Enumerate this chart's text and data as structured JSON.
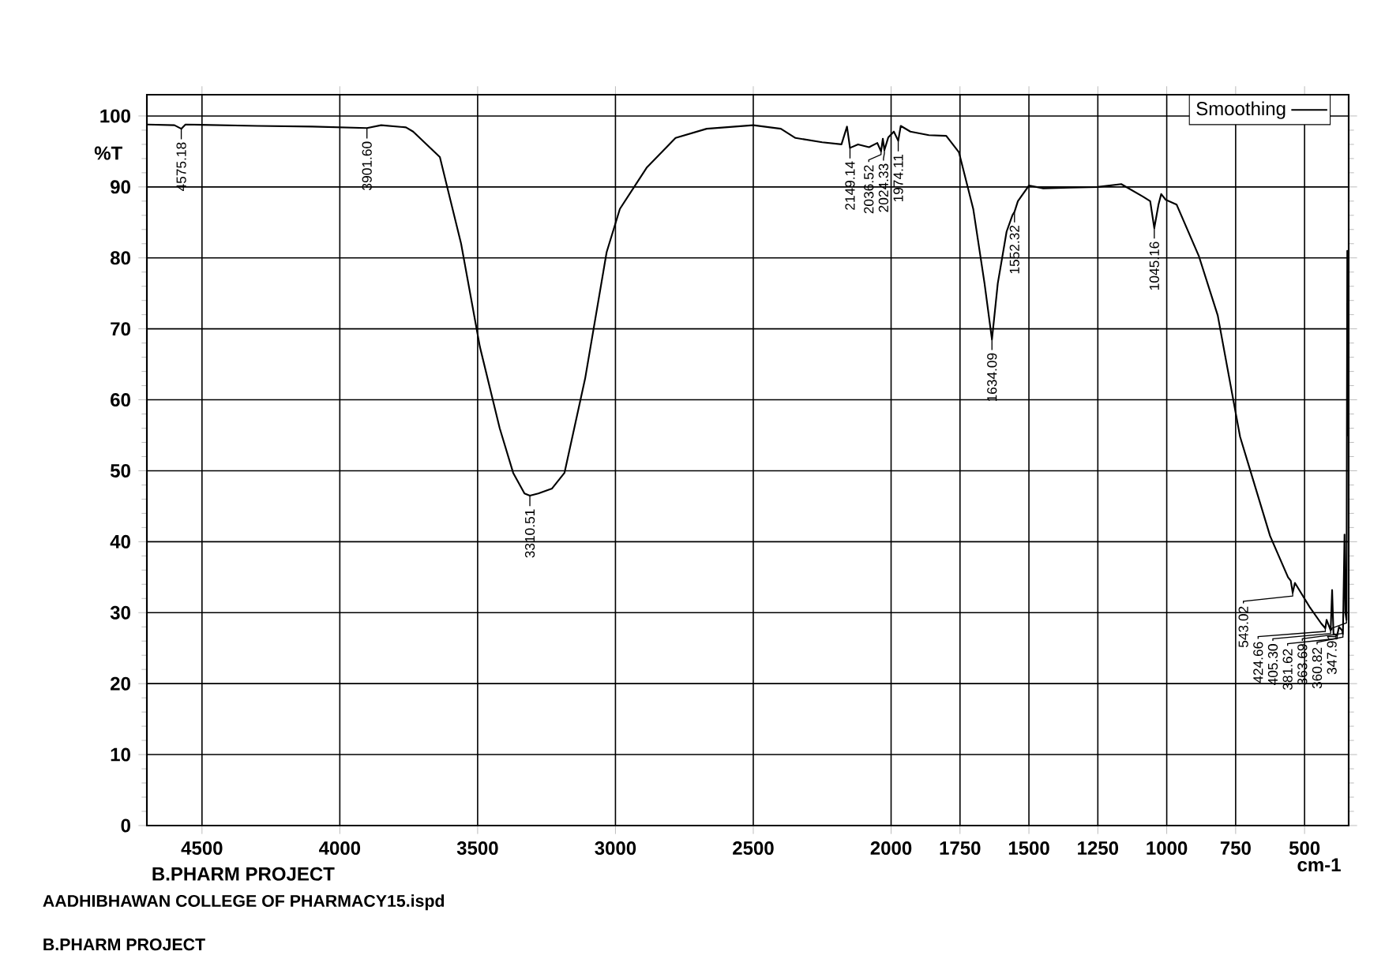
{
  "chart_data": {
    "type": "line",
    "xlabel": "cm-1",
    "ylabel": "%T",
    "xlim": [
      4700,
      340
    ],
    "ylim": [
      0,
      103
    ],
    "xticks": [
      4500,
      4000,
      3500,
      3000,
      2500,
      2000,
      1750,
      1500,
      1250,
      1000,
      750,
      500
    ],
    "yticks": [
      0,
      10,
      20,
      30,
      40,
      50,
      60,
      70,
      80,
      90,
      100
    ],
    "grid": true,
    "legend": "top right",
    "series": [
      {
        "name": "Smoothing",
        "color": "#000000",
        "x": [
          4700,
          4600,
          4575.18,
          4560,
          4300,
          4100,
          3901.6,
          3850,
          3760,
          3734,
          3637,
          3560,
          3492,
          3420,
          3371,
          3330,
          3310.51,
          3280,
          3230,
          3185,
          3110,
          3032,
          2984,
          2887,
          2782,
          2669,
          2500,
          2400,
          2347,
          2250,
          2180,
          2160,
          2149.14,
          2120,
          2080,
          2050,
          2036.52,
          2030,
          2024.33,
          2010,
          1990,
          1974.11,
          1965,
          1930,
          1863,
          1800,
          1754,
          1702,
          1661,
          1634.09,
          1613,
          1581,
          1560,
          1552.32,
          1540,
          1500,
          1448,
          1350,
          1250,
          1165,
          1085,
          1060,
          1045.16,
          1030,
          1020,
          1004,
          964,
          883,
          815,
          734,
          706,
          625,
          560,
          550,
          543.02,
          535,
          480,
          440,
          424.66,
          420,
          405.3,
          400,
          395,
          381.62,
          375,
          363.69,
          360.82,
          355,
          352,
          347.91,
          345,
          343,
          341
        ],
        "values": [
          98.8,
          98.7,
          98.2,
          98.8,
          98.6,
          98.5,
          98.3,
          98.7,
          98.4,
          97.8,
          94.2,
          82,
          67.5,
          56,
          49.7,
          46.8,
          46.5,
          46.8,
          47.5,
          49.7,
          63,
          80.8,
          86.9,
          92.7,
          96.9,
          98.2,
          98.7,
          98.2,
          96.9,
          96.3,
          96.0,
          98.5,
          95.5,
          96.0,
          95.6,
          96.2,
          95.0,
          96.8,
          95.2,
          97.0,
          97.8,
          96.5,
          98.6,
          97.8,
          97.3,
          97.2,
          94.9,
          86.9,
          76.4,
          68.5,
          76.4,
          83.7,
          86.0,
          86.5,
          88,
          90.2,
          89.8,
          89.9,
          90.0,
          90.4,
          88.6,
          88.0,
          84.2,
          87.5,
          89.0,
          88.2,
          87.5,
          80.2,
          71.9,
          54.8,
          51.2,
          40.8,
          35,
          34.5,
          32.8,
          34.2,
          30.7,
          28.5,
          27.8,
          29,
          27.5,
          33.2,
          27,
          26.8,
          28,
          27.5,
          27.0,
          41,
          30,
          29.0,
          81,
          55,
          81
        ]
      }
    ],
    "annotations": [
      {
        "text": "4575.18",
        "x": 4575.18,
        "y": 98.2
      },
      {
        "text": "3901.60",
        "x": 3901.6,
        "y": 98.3
      },
      {
        "text": "3310.51",
        "x": 3310.51,
        "y": 46.5
      },
      {
        "text": "2149.14",
        "x": 2149.14,
        "y": 95.5
      },
      {
        "text": "2036.52",
        "x": 2036.52,
        "y": 95.0
      },
      {
        "text": "2024.33",
        "x": 2024.33,
        "y": 95.2
      },
      {
        "text": "1974.11",
        "x": 1974.11,
        "y": 96.5
      },
      {
        "text": "1634.09",
        "x": 1634.09,
        "y": 68.5
      },
      {
        "text": "1552.32",
        "x": 1552.32,
        "y": 86.5
      },
      {
        "text": "1045.16",
        "x": 1045.16,
        "y": 84.2
      },
      {
        "text": "543.02",
        "x": 543.02,
        "y": 32.8
      },
      {
        "text": "424.66",
        "x": 424.66,
        "y": 27.8
      },
      {
        "text": "405.30",
        "x": 405.3,
        "y": 27.5
      },
      {
        "text": "381.62",
        "x": 381.62,
        "y": 26.8
      },
      {
        "text": "363.69",
        "x": 363.69,
        "y": 27.5
      },
      {
        "text": "360.82",
        "x": 360.82,
        "y": 27.0
      },
      {
        "text": "347.91",
        "x": 347.91,
        "y": 29.0
      },
      "B.PHARM PROJECT",
      "AADHIBHAWAN COLLEGE OF PHARMACY15.ispd",
      "B.PHARM PROJECT"
    ]
  }
}
